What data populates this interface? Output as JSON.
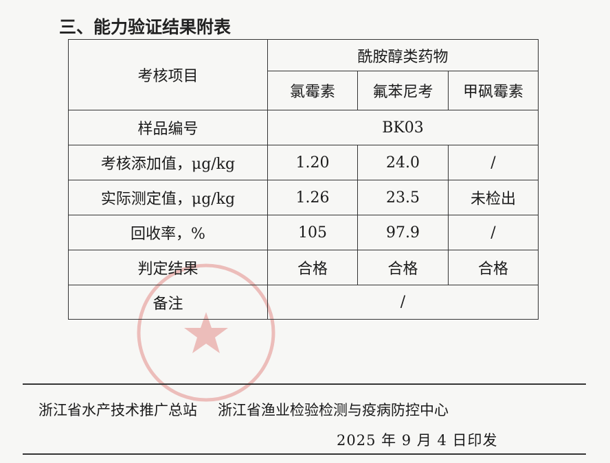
{
  "title": "三、能力验证结果附表",
  "table": {
    "item_header": "考核项目",
    "group_header": "酰胺醇类药物",
    "drugs": [
      "氯霉素",
      "氟苯尼考",
      "甲砜霉素"
    ],
    "sample_label": "样品编号",
    "sample_value": "BK03",
    "rows": [
      {
        "label": "考核添加值，μg/kg",
        "values": [
          "1.20",
          "24.0",
          "/"
        ]
      },
      {
        "label": "实际测定值，μg/kg",
        "values": [
          "1.26",
          "23.5",
          "未检出"
        ]
      },
      {
        "label": "回收率，%",
        "values": [
          "105",
          "97.9",
          "/"
        ]
      },
      {
        "label": "判定结果",
        "values": [
          "合格",
          "合格",
          "合格"
        ]
      }
    ],
    "note_label": "备注",
    "note_value": "/"
  },
  "footer": {
    "org1": "浙江省水产技术推广总站",
    "org2": "浙江省渔业检验检测与疫病防控中心",
    "date": "2025 年 9 月 4 日印发"
  },
  "colors": {
    "stamp": "#d9534f",
    "text": "#1a1a1a"
  }
}
